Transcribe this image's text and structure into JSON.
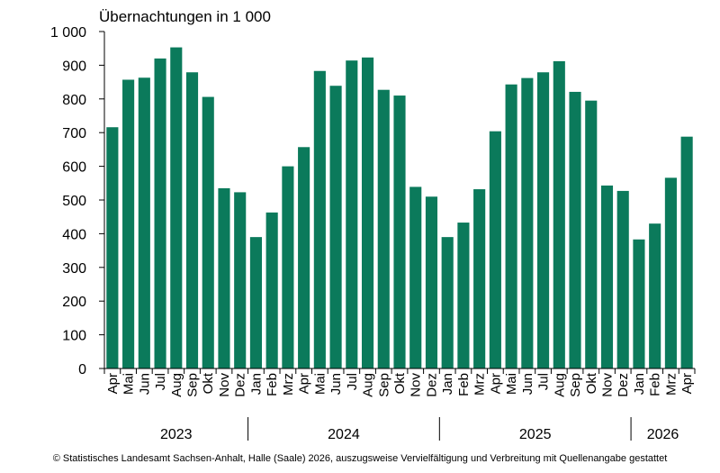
{
  "chart_data": {
    "type": "bar",
    "ylabel": "Übernachtungen in 1 000",
    "ylim": [
      0,
      1000
    ],
    "yticks": [
      0,
      100,
      200,
      300,
      400,
      500,
      600,
      700,
      800,
      900,
      1000
    ],
    "ytick_labels": [
      "0",
      "100",
      "200",
      "300",
      "400",
      "500",
      "600",
      "700",
      "800",
      "900",
      "1 000"
    ],
    "grid": false,
    "bar_color": "#0b7a5b",
    "categories": [
      "Apr",
      "Mai",
      "Jun",
      "Jul",
      "Aug",
      "Sep",
      "Okt",
      "Nov",
      "Dez",
      "Jan",
      "Feb",
      "Mrz",
      "Apr",
      "Mai",
      "Jun",
      "Jul",
      "Aug",
      "Sep",
      "Okt",
      "Nov",
      "Dez",
      "Jan",
      "Feb",
      "Mrz",
      "Apr",
      "Mai",
      "Jun",
      "Jul",
      "Aug",
      "Sep",
      "Okt",
      "Nov",
      "Dez",
      "Jan",
      "Feb",
      "Mrz",
      "Apr"
    ],
    "values": [
      716,
      857,
      863,
      920,
      953,
      879,
      806,
      535,
      523,
      390,
      463,
      600,
      657,
      883,
      839,
      914,
      923,
      827,
      810,
      539,
      510,
      390,
      433,
      532,
      704,
      843,
      862,
      879,
      912,
      821,
      795,
      543,
      527,
      383,
      430,
      566,
      688
    ],
    "years": [
      {
        "label": "2023",
        "start": 0,
        "count": 9
      },
      {
        "label": "2024",
        "start": 9,
        "count": 12
      },
      {
        "label": "2025",
        "start": 21,
        "count": 12
      },
      {
        "label": "2026",
        "start": 33,
        "count": 4
      }
    ]
  },
  "footer": "© Statistisches Landesamt Sachsen-Anhalt, Halle (Saale) 2026, auszugsweise Vervielfältigung und Verbreitung mit Quellenangabe gestattet"
}
